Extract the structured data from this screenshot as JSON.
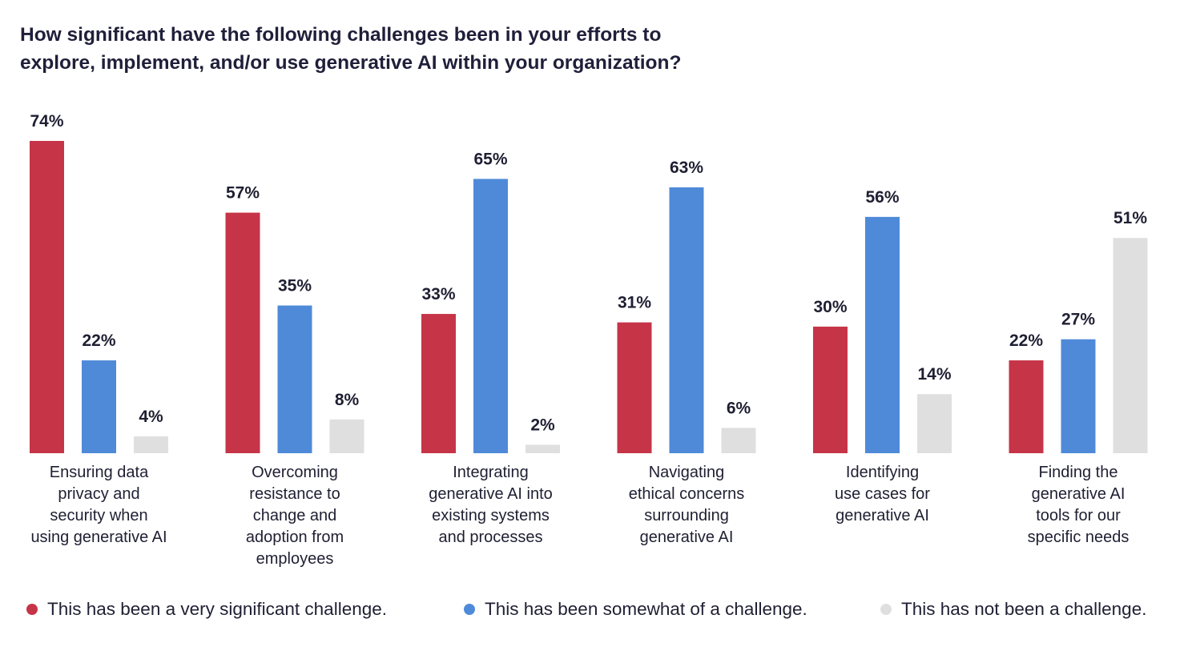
{
  "title_lines": [
    "How significant have the following challenges been in your efforts to",
    "explore, implement, and/or use generative AI within your organization?"
  ],
  "colors": {
    "very_significant": "#c63447",
    "somewhat": "#4f8ad9",
    "not": "#e0dfdf",
    "text": "#1f1f33"
  },
  "chart_data": {
    "type": "bar",
    "title": "How significant have the following challenges been in your efforts to explore, implement, and/or use generative AI within your organization?",
    "categories": [
      [
        "Ensuring data",
        "privacy and",
        "security when",
        "using generative AI"
      ],
      [
        "Overcoming",
        "resistance to",
        "change and",
        "adoption from",
        "employees"
      ],
      [
        "Integrating",
        "generative AI into",
        "existing systems",
        "and processes"
      ],
      [
        "Navigating",
        "ethical concerns",
        "surrounding",
        "generative AI"
      ],
      [
        "Identifying",
        "use cases for",
        "generative AI"
      ],
      [
        "Finding the",
        "generative AI",
        "tools for our",
        "specific needs"
      ]
    ],
    "series": [
      {
        "name": "This has been a very significant challenge.",
        "color": "#c63447",
        "values": [
          74,
          57,
          33,
          31,
          30,
          22
        ]
      },
      {
        "name": "This has been somewhat of a challenge.",
        "color": "#4f8ad9",
        "values": [
          22,
          35,
          65,
          63,
          56,
          27
        ]
      },
      {
        "name": "This has not been a challenge.",
        "color": "#e0dfdf",
        "values": [
          4,
          8,
          2,
          6,
          14,
          51
        ]
      }
    ],
    "value_suffix": "%",
    "ylim": [
      0,
      74
    ],
    "grid": false,
    "legend": "bottom"
  }
}
